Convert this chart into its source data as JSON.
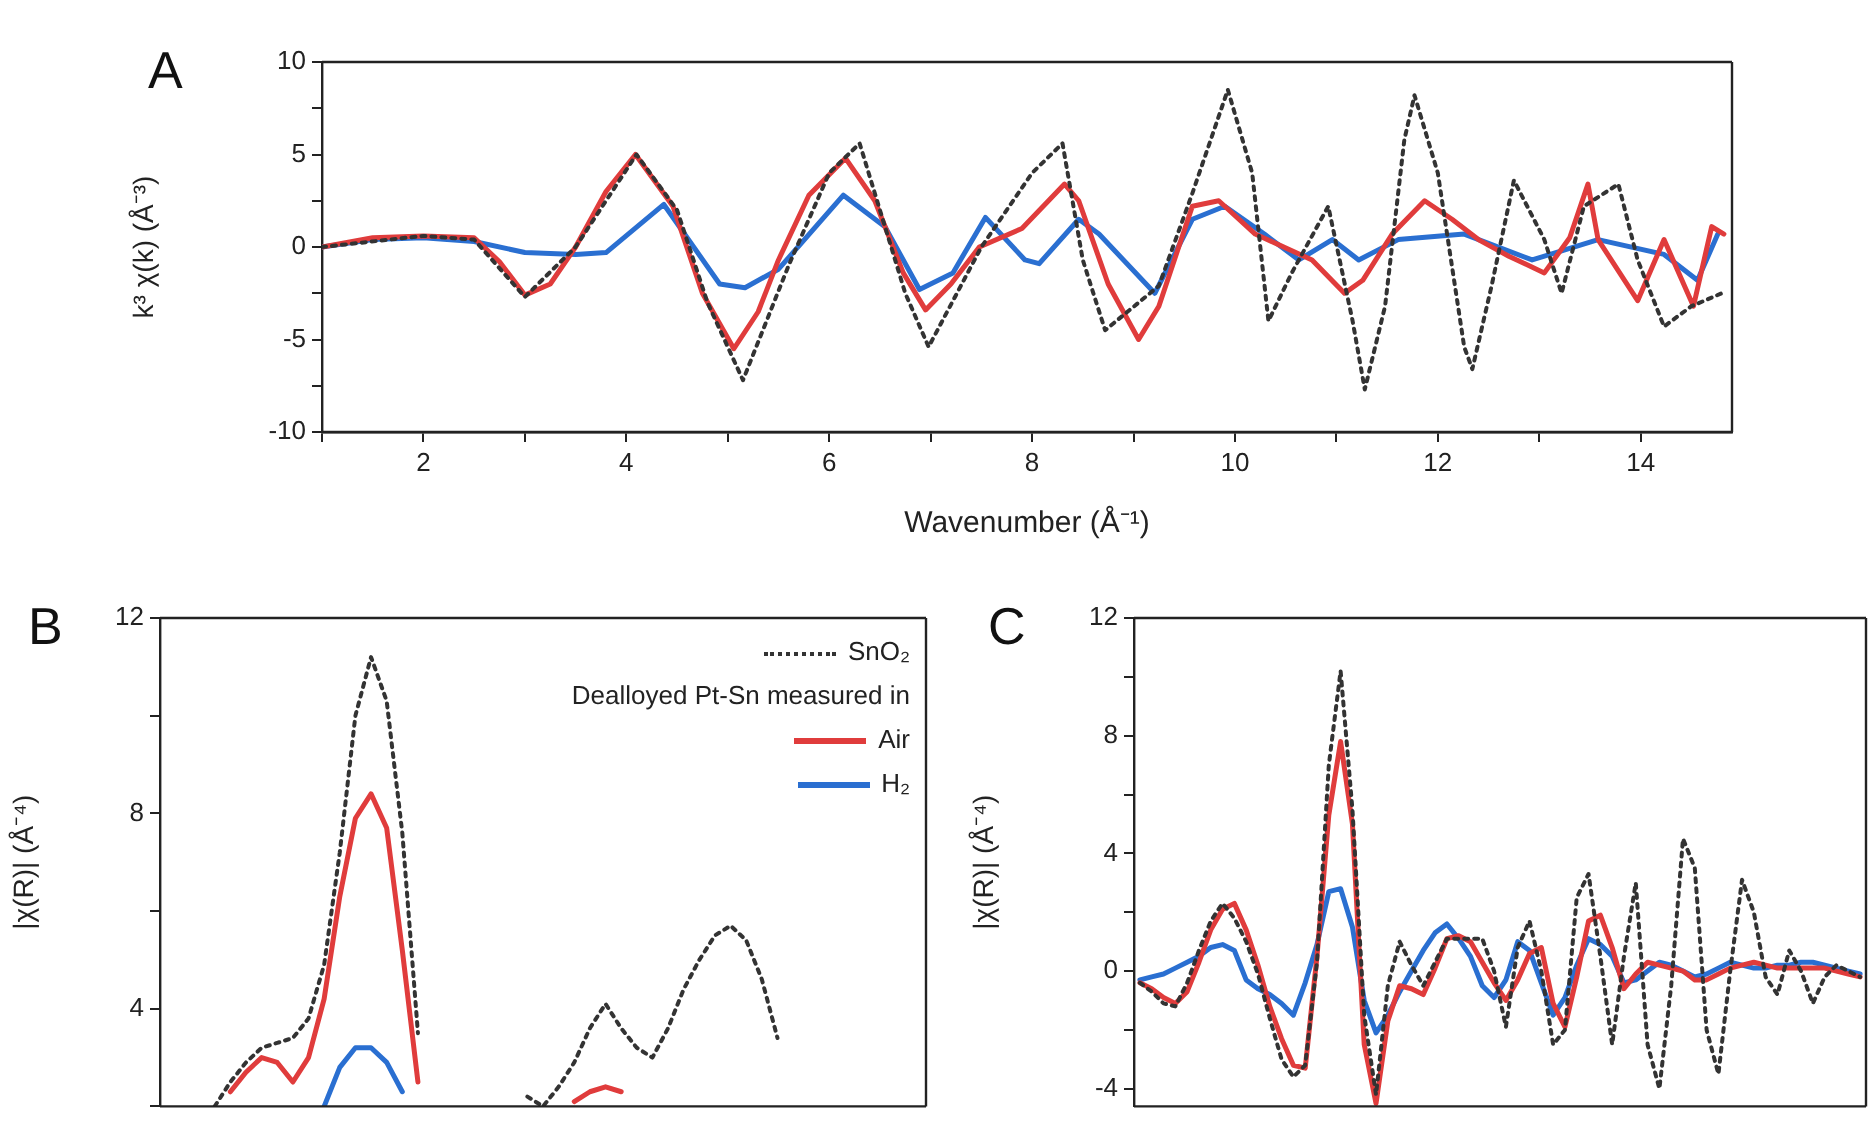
{
  "chart_data": [
    {
      "type": "line",
      "title": "A",
      "xlabel": "Wavenumber (Å⁻¹)",
      "ylabel": "k³ χ(k) (Å⁻³)",
      "grid": false,
      "legend": false,
      "marker": "none",
      "xlim": [
        1,
        14.9
      ],
      "xticks": [
        {
          "value": 1,
          "label": null
        },
        2,
        {
          "value": 3,
          "label": null
        },
        4,
        {
          "value": 5,
          "label": null
        },
        6,
        {
          "value": 7,
          "label": null
        },
        8,
        {
          "value": 9,
          "label": null
        },
        10,
        {
          "value": 11,
          "label": null
        },
        12,
        {
          "value": 13,
          "label": null
        },
        14
      ],
      "ylim": [
        -10,
        10
      ],
      "yticks": [
        -10,
        {
          "value": -7.5,
          "label": null
        },
        -5,
        {
          "value": -2.5,
          "label": null
        },
        0,
        {
          "value": 2.5,
          "label": null
        },
        5,
        {
          "value": 7.5,
          "label": null
        },
        10
      ],
      "series": [
        {
          "color": "#333333",
          "line_style": "dotted",
          "x": [
            1,
            2,
            2.5,
            3.0,
            3.5,
            4.1,
            4.5,
            4.8,
            5.15,
            5.6,
            6.0,
            6.3,
            6.75,
            6.98,
            7.5,
            8.0,
            8.3,
            8.5,
            8.72,
            9.25,
            9.58,
            9.93,
            10.17,
            10.33,
            10.56,
            10.92,
            11.16,
            11.28,
            11.48,
            11.67,
            11.77,
            12.0,
            12.26,
            12.34,
            12.53,
            12.75,
            13.05,
            13.22,
            13.44,
            13.78,
            13.97,
            14.23,
            14.5,
            14.8
          ],
          "values": [
            0,
            0.6,
            0.4,
            -2.7,
            0,
            5.0,
            2.0,
            -3.0,
            -7.2,
            -1.0,
            4.0,
            5.6,
            -2.5,
            -5.4,
            0,
            4.0,
            5.6,
            -0.7,
            -4.5,
            -2.1,
            2.9,
            8.5,
            4.0,
            -4.0,
            -1.4,
            2.2,
            -4.0,
            -7.7,
            -3.2,
            5.8,
            8.2,
            4.0,
            -5.4,
            -6.6,
            -2.1,
            3.6,
            0.4,
            -2.5,
            2.2,
            3.4,
            -0.7,
            -4.3,
            -3.2,
            -2.5
          ]
        },
        {
          "color": "#e03c3c",
          "line_style": "solid",
          "x": [
            1,
            1.5,
            2,
            2.5,
            2.75,
            3.0,
            3.25,
            3.5,
            3.8,
            4.09,
            4.46,
            4.75,
            5.06,
            5.3,
            5.5,
            5.8,
            6.16,
            6.45,
            6.73,
            6.95,
            7.2,
            7.48,
            7.9,
            8.32,
            8.46,
            8.75,
            9.05,
            9.25,
            9.58,
            9.84,
            10.2,
            10.76,
            11.08,
            11.26,
            11.55,
            11.87,
            12.14,
            12.4,
            12.7,
            13.05,
            13.3,
            13.48,
            13.58,
            13.97,
            14.23,
            14.52,
            14.7,
            14.82
          ],
          "values": [
            0,
            0.5,
            0.6,
            0.5,
            -0.8,
            -2.6,
            -2.0,
            0,
            3.0,
            5.0,
            2.2,
            -2.5,
            -5.5,
            -3.5,
            -0.7,
            2.8,
            4.8,
            2.5,
            -1.4,
            -3.4,
            -2.0,
            0,
            1.0,
            3.4,
            2.5,
            -2.0,
            -5.0,
            -3.2,
            2.2,
            2.5,
            0.7,
            -0.7,
            -2.5,
            -1.8,
            0.7,
            2.5,
            1.5,
            0.4,
            -0.5,
            -1.4,
            0.5,
            3.4,
            0.4,
            -2.9,
            0.4,
            -3.2,
            1.1,
            0.7
          ]
        },
        {
          "color": "#2a6fd1",
          "line_style": "solid",
          "x": [
            1,
            1.5,
            2,
            2.5,
            3.0,
            3.5,
            3.8,
            4.37,
            4.92,
            5.17,
            5.5,
            6.14,
            6.55,
            6.89,
            7.22,
            7.54,
            7.93,
            8.07,
            8.46,
            8.66,
            9.21,
            9.58,
            9.9,
            10.29,
            10.63,
            10.96,
            11.22,
            11.61,
            12.26,
            12.93,
            13.58,
            14.23,
            14.56,
            14.76
          ],
          "values": [
            0,
            0.4,
            0.5,
            0.3,
            -0.3,
            -0.4,
            -0.3,
            2.3,
            -2.0,
            -2.2,
            -1.2,
            2.8,
            1.1,
            -2.3,
            -1.4,
            1.6,
            -0.7,
            -0.9,
            1.5,
            0.7,
            -2.5,
            1.5,
            2.2,
            0.7,
            -0.7,
            0.4,
            -0.7,
            0.4,
            0.7,
            -0.7,
            0.4,
            -0.4,
            -1.8,
            0.7
          ]
        }
      ]
    },
    {
      "type": "line",
      "title": "B",
      "ylabel": "|χ(R)| (Å⁻⁴)",
      "grid": false,
      "legend": "top right",
      "legend_title": "Dealloyed Pt-Sn measured in",
      "marker": "none",
      "tick_labels": "y",
      "categories": [
        null,
        null,
        null,
        null,
        null,
        null,
        null,
        null,
        null,
        null,
        null,
        null,
        null,
        null,
        null,
        null,
        null,
        null,
        null,
        null,
        null,
        null,
        null,
        null,
        null,
        null,
        null,
        null,
        null,
        null,
        null,
        null,
        null,
        null,
        null,
        null,
        null,
        null,
        null,
        null,
        null,
        null,
        null,
        null,
        null,
        null,
        null,
        null,
        null
      ],
      "ylim": [
        2,
        12
      ],
      "yticks": [
        {
          "value": 2,
          "label": null
        },
        4,
        {
          "value": 6,
          "label": null
        },
        8,
        {
          "value": 10,
          "label": null
        },
        12
      ],
      "series": [
        {
          "name": "SnO₂",
          "color": "#333333",
          "line_style": "dotted",
          "values": [
            null,
            null,
            null,
            2.0,
            2.5,
            2.9,
            3.2,
            3.3,
            3.4,
            3.8,
            4.9,
            7.2,
            10.0,
            11.2,
            10.3,
            7.6,
            3.5,
            null,
            null,
            null,
            null,
            null,
            null,
            2.2,
            2.0,
            2.4,
            2.9,
            3.6,
            4.1,
            3.6,
            3.2,
            3.0,
            3.6,
            4.4,
            5.0,
            5.5,
            5.7,
            5.4,
            4.6,
            3.4,
            null,
            null,
            null,
            null,
            null,
            null,
            null,
            null,
            null
          ]
        },
        {
          "name": "Air",
          "color": "#e03c3c",
          "line_style": "solid",
          "values": [
            null,
            null,
            null,
            null,
            2.3,
            2.7,
            3.0,
            2.9,
            2.5,
            3.0,
            4.2,
            6.3,
            7.9,
            8.4,
            7.7,
            5.2,
            2.5,
            null,
            null,
            null,
            null,
            null,
            null,
            null,
            null,
            null,
            2.1,
            2.3,
            2.4,
            2.3,
            null,
            null,
            null,
            null,
            null,
            null,
            null,
            null,
            null,
            null,
            null,
            null,
            null,
            null,
            null,
            null,
            null,
            null,
            null
          ]
        },
        {
          "name": "H₂",
          "color": "#2a6fd1",
          "line_style": "solid",
          "values": [
            null,
            null,
            null,
            null,
            null,
            null,
            null,
            null,
            null,
            null,
            2.0,
            2.8,
            3.2,
            3.2,
            2.9,
            2.3,
            null,
            null,
            null,
            null,
            null,
            null,
            null,
            null,
            null,
            null,
            null,
            null,
            null,
            null,
            null,
            null,
            null,
            null,
            null,
            null,
            null,
            null,
            null,
            null,
            null,
            null,
            null,
            null,
            null,
            null,
            null,
            null,
            null
          ]
        }
      ]
    },
    {
      "type": "line",
      "title": "C",
      "ylabel": "|χ(R)| (Å⁻⁴)",
      "grid": false,
      "legend": false,
      "marker": "none",
      "tick_labels": "y",
      "categories": [
        null,
        null,
        null,
        null,
        null,
        null,
        null,
        null,
        null,
        null,
        null,
        null,
        null,
        null,
        null,
        null,
        null,
        null,
        null,
        null,
        null,
        null,
        null,
        null,
        null,
        null,
        null,
        null,
        null,
        null,
        null,
        null,
        null,
        null,
        null,
        null,
        null,
        null,
        null,
        null,
        null,
        null,
        null,
        null,
        null,
        null,
        null,
        null,
        null,
        null,
        null,
        null,
        null,
        null,
        null,
        null,
        null,
        null,
        null,
        null,
        null,
        null
      ],
      "ylim": [
        -4.6,
        12
      ],
      "yticks": [
        -4,
        {
          "value": -2,
          "label": null
        },
        0,
        {
          "value": 2,
          "label": null
        },
        4,
        {
          "value": 6,
          "label": null
        },
        8,
        {
          "value": 10,
          "label": null
        },
        12
      ],
      "series": [
        {
          "color": "#333333",
          "line_style": "dotted",
          "values": [
            -0.4,
            -0.7,
            -1.1,
            -1.2,
            -0.4,
            0.7,
            1.7,
            2.3,
            1.8,
            1.0,
            -0.1,
            -1.6,
            -3.0,
            -3.6,
            -3.2,
            0.3,
            7.0,
            10.2,
            5.5,
            -1.5,
            -4.2,
            -0.5,
            1.0,
            0.2,
            -0.5,
            0.3,
            1.1,
            1.1,
            1.1,
            1.1,
            0.0,
            -1.9,
            0.8,
            1.7,
            0.0,
            -2.5,
            -2.0,
            2.5,
            3.3,
            0.5,
            -2.5,
            0.5,
            3.0,
            -2.5,
            -4.0,
            -0.5,
            4.5,
            3.5,
            -2.0,
            -3.5,
            0.0,
            3.1,
            2.0,
            -0.2,
            -0.8,
            0.7,
            0.0,
            -1.1,
            -0.2,
            0.2,
            0.0,
            -0.2
          ]
        },
        {
          "color": "#e03c3c",
          "line_style": "solid",
          "values": [
            -0.4,
            -0.6,
            -0.9,
            -1.1,
            -0.7,
            0.3,
            1.4,
            2.1,
            2.3,
            1.4,
            0.2,
            -1.2,
            -2.3,
            -3.2,
            -3.3,
            0.5,
            5.3,
            7.8,
            5.0,
            -2.5,
            -4.5,
            -1.7,
            -0.5,
            -0.6,
            -0.8,
            0.1,
            1.1,
            1.2,
            1.0,
            0.3,
            -0.4,
            -1.0,
            -0.3,
            0.6,
            0.8,
            -1.1,
            -1.9,
            -0.2,
            1.7,
            1.9,
            0.8,
            -0.6,
            -0.1,
            0.3,
            0.2,
            0.1,
            0.0,
            -0.3,
            -0.3,
            -0.1,
            0.1,
            0.2,
            0.3,
            0.2,
            0.1,
            0.1,
            0.1,
            0.1,
            0.1,
            0.0,
            -0.1,
            -0.2
          ]
        },
        {
          "color": "#2a6fd1",
          "line_style": "solid",
          "values": [
            -0.3,
            -0.2,
            -0.1,
            0.1,
            0.3,
            0.5,
            0.8,
            0.9,
            0.7,
            -0.3,
            -0.6,
            -0.8,
            -1.1,
            -1.5,
            -0.4,
            0.9,
            2.7,
            2.8,
            1.5,
            -1.0,
            -2.1,
            -1.5,
            -0.7,
            0.0,
            0.7,
            1.3,
            1.6,
            1.1,
            0.5,
            -0.5,
            -0.9,
            -0.3,
            1.0,
            0.7,
            -0.4,
            -1.5,
            -0.9,
            0.2,
            1.1,
            0.9,
            0.5,
            -0.4,
            -0.3,
            0.0,
            0.3,
            0.2,
            0.0,
            -0.2,
            -0.1,
            0.1,
            0.3,
            0.2,
            0.1,
            0.1,
            0.2,
            0.2,
            0.3,
            0.3,
            0.2,
            0.1,
            0.0,
            -0.1
          ]
        }
      ]
    }
  ]
}
